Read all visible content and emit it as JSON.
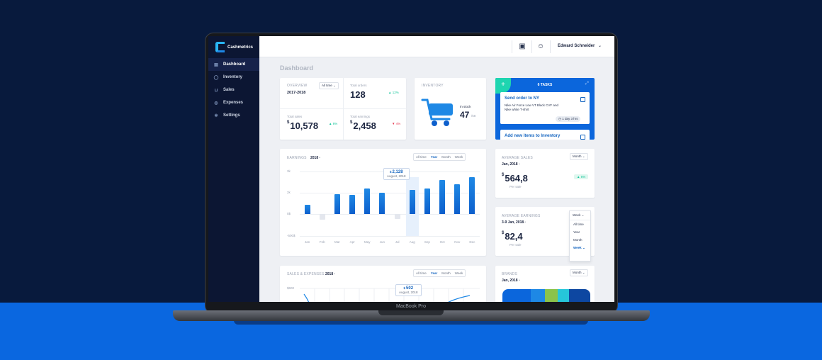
{
  "device": {
    "brand": "MacBook Pro"
  },
  "app": {
    "name": "Cashmetrics"
  },
  "sidebar": {
    "items": [
      {
        "label": "Dashboard",
        "icon": "chart-icon",
        "active": true
      },
      {
        "label": "Inventory",
        "icon": "user-icon",
        "active": false
      },
      {
        "label": "Sales",
        "icon": "cart-icon",
        "active": false
      },
      {
        "label": "Expenses",
        "icon": "dollar-icon",
        "active": false
      },
      {
        "label": "Settings",
        "icon": "gear-icon",
        "active": false
      }
    ]
  },
  "topbar": {
    "user_name": "Edward Schneider"
  },
  "page": {
    "title": "Dashboard"
  },
  "overview": {
    "label": "OVERVIEW",
    "period": "2017-2018",
    "filter": "All time",
    "total_orders_label": "Total orders",
    "total_orders": "128",
    "total_orders_change": "▲ 12%",
    "total_sales_label": "Total sales",
    "total_sales_currency": "$",
    "total_sales": "10,578",
    "total_sales_change": "▲ 8%",
    "total_earnings_label": "Total earnings",
    "total_earnings_currency": "$",
    "total_earnings": "2,458",
    "total_earnings_change": "▼ 4%"
  },
  "inventory": {
    "label": "INVENTORY",
    "in_stock_label": "In stock",
    "in_stock": "47",
    "in_stock_total": "/58"
  },
  "tasks": {
    "title": "6 TASKS",
    "items": [
      {
        "title": "Send order to NY",
        "desc": "Nike Air Force Low VT Black CVF and Nike white T-shirt",
        "due": "1 day 3 hrs"
      },
      {
        "title": "Add new items to Inventory"
      }
    ]
  },
  "earnings": {
    "label": "EARNINGS",
    "year": "2018",
    "filters": [
      "All time",
      "Year",
      "Month",
      "Week"
    ],
    "selected": "Year",
    "tooltip_currency": "$",
    "tooltip_value": "2,128",
    "tooltip_date": "August, 2018"
  },
  "chart_data": {
    "type": "bar",
    "title": "EARNINGS",
    "categories": [
      "Jan",
      "Feb",
      "Mar",
      "Apr",
      "May",
      "Jun",
      "Jul",
      "Aug",
      "Sep",
      "Oct",
      "Nov",
      "Dec"
    ],
    "values": [
      4.5,
      -8,
      9.5,
      9,
      12,
      10,
      -7,
      11.5,
      12,
      16,
      14,
      17.5
    ],
    "ylim": [
      -10,
      20
    ],
    "y_ticks": [
      "3k",
      "2k",
      "0$",
      "-500$"
    ],
    "highlight": "Aug"
  },
  "avg_sales": {
    "label": "AVERAGE SALES",
    "period": "Jan, 2018",
    "filter": "Month",
    "currency": "$",
    "value": "564,8",
    "sub": "Per sale",
    "change": "▲ 5%"
  },
  "avg_earnings": {
    "label": "AVERAGE EARNINGS",
    "period": "3-9 Jan, 2018",
    "filter": "Week",
    "currency": "$",
    "value": "82,4",
    "sub": "Per sale",
    "options": [
      "All time",
      "Year",
      "Month",
      "Week"
    ]
  },
  "sales_expenses": {
    "label": "SALES & EXPENSES",
    "year": "2018",
    "filters": [
      "All time",
      "Year",
      "Month",
      "Week"
    ],
    "selected": "Year",
    "y_top": "$600",
    "tooltip_currency": "$",
    "tooltip_value": "502",
    "tooltip_date": "August, 2018"
  },
  "brands": {
    "label": "BRANDS",
    "period": "Jan, 2018",
    "filter": "Month",
    "colors": [
      "#0b66dc",
      "#1e88e5",
      "#8bc34a",
      "#26c6da",
      "#0d47a1"
    ]
  }
}
